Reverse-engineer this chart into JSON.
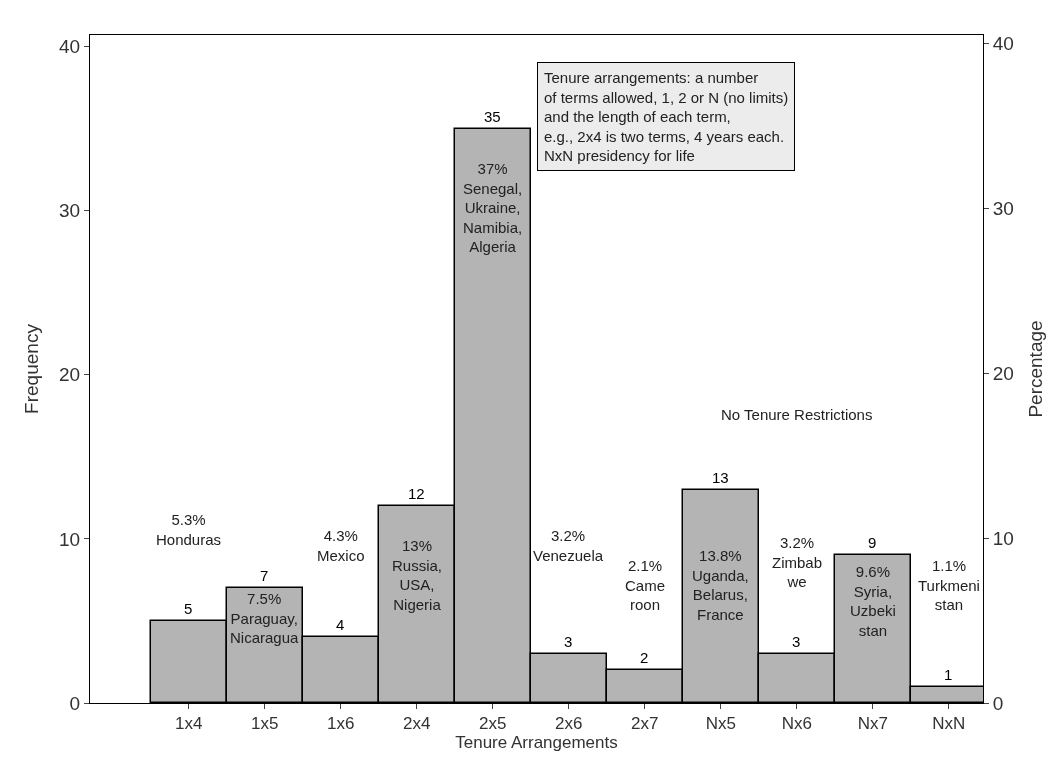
{
  "chart_data": {
    "type": "bar",
    "xlabel": "Tenure Arrangements",
    "ylabel": "Frequency",
    "y2label": "Percentage",
    "categories": [
      "1x4",
      "1x5",
      "1x6",
      "2x4",
      "2x5",
      "2x6",
      "2x7",
      "Nx5",
      "Nx6",
      "Nx7",
      "NxN"
    ],
    "values": [
      5,
      7,
      4,
      12,
      35,
      3,
      2,
      13,
      3,
      9,
      1
    ],
    "color": "#b4b4b4",
    "data_labels": true,
    "ylim": [
      0,
      40.7
    ],
    "yticks": [
      0,
      10,
      20,
      30,
      40
    ],
    "y2lim": [
      0,
      40.5
    ],
    "y2ticks": [
      0,
      10,
      20,
      30,
      40
    ],
    "annotations": [
      "Tenure arrangements: a number\nof terms allowed, 1, 2 or N (no limits)\nand the length of each term,\ne.g., 2x4 is two terms, 4 years each.\nNxN presidency for life",
      "5.3%\nHonduras",
      "7.5%\nParaguay,\nNicaragua",
      "4.3%\nMexico",
      "13%\nRussia,\nUSA,\nNigeria",
      "37%\nSenegal,\nUkraine,\nNamibia,\nAlgeria",
      "3.2%\nVenezuela",
      "2.1%\nCame\nroon",
      "13.8%\nUganda,\nBelarus,\nFrance",
      "3.2%\nZimbab\nwe",
      "9.6%\nSyria,\nUzbeki\nstan",
      "1.1%\nTurkmeni\nstan",
      "No Tenure Restrictions"
    ]
  }
}
